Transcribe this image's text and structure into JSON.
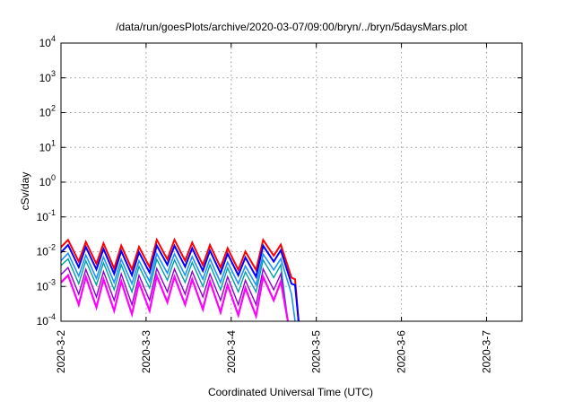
{
  "chart_data": {
    "type": "line",
    "title": "/data/run/goesPlots/archive/2020-03-07/09:00/bryn/../bryn/5daysMars.plot",
    "xlabel": "Coordinated Universal Time (UTC)",
    "ylabel": "cSv/day",
    "yscale": "log",
    "xlim": [
      "2020-03-02",
      "2020-03-07 10:00"
    ],
    "ylim": [
      0.0001,
      10000
    ],
    "grid": true,
    "x_ticks": [
      {
        "value": "2020-03-02",
        "label": "2020-3-2"
      },
      {
        "value": "2020-03-03",
        "label": "2020-3-3"
      },
      {
        "value": "2020-03-04",
        "label": "2020-3-4"
      },
      {
        "value": "2020-03-05",
        "label": "2020-3-5"
      },
      {
        "value": "2020-03-06",
        "label": "2020-3-6"
      },
      {
        "value": "2020-03-07",
        "label": "2020-3-7"
      }
    ],
    "y_ticks": [
      {
        "value": 0.0001,
        "base": "10",
        "exp": "-4"
      },
      {
        "value": 0.001,
        "base": "10",
        "exp": "-3"
      },
      {
        "value": 0.01,
        "base": "10",
        "exp": "-2"
      },
      {
        "value": 0.1,
        "base": "10",
        "exp": "-1"
      },
      {
        "value": 1,
        "base": "10",
        "exp": "0"
      },
      {
        "value": 10,
        "base": "10",
        "exp": "1"
      },
      {
        "value": 100,
        "base": "10",
        "exp": "2"
      },
      {
        "value": 1000,
        "base": "10",
        "exp": "3"
      },
      {
        "value": 10000,
        "base": "10",
        "exp": "4"
      }
    ],
    "series": [
      {
        "color": "#ff0000",
        "width": 2,
        "x": [
          "2020-03-02 00:00",
          "2020-03-02 02:00",
          "2020-03-02 05:00",
          "2020-03-02 07:00",
          "2020-03-02 10:00",
          "2020-03-02 12:00",
          "2020-03-02 15:00",
          "2020-03-02 17:00",
          "2020-03-02 20:00",
          "2020-03-02 22:00",
          "2020-03-03 01:00",
          "2020-03-03 03:00",
          "2020-03-03 06:00",
          "2020-03-03 08:00",
          "2020-03-03 11:00",
          "2020-03-03 13:00",
          "2020-03-03 16:00",
          "2020-03-03 18:00",
          "2020-03-03 21:00",
          "2020-03-03 23:00",
          "2020-03-04 02:00",
          "2020-03-04 04:00",
          "2020-03-04 07:00",
          "2020-03-04 09:00",
          "2020-03-04 12:00",
          "2020-03-04 14:00",
          "2020-03-04 17:00",
          "2020-03-04 18:00",
          "2020-03-04 19:00"
        ],
        "y": [
          0.0135,
          0.0219,
          0.0052,
          0.0191,
          0.0045,
          0.0175,
          0.0033,
          0.015,
          0.0031,
          0.0138,
          0.0036,
          0.022,
          0.006,
          0.0221,
          0.0055,
          0.0183,
          0.0041,
          0.0156,
          0.0035,
          0.0126,
          0.003,
          0.0101,
          0.003,
          0.0219,
          0.0077,
          0.016,
          0.0018,
          0.0016,
          0.0001
        ]
      },
      {
        "color": "#0000ff",
        "width": 2,
        "x": [
          "2020-03-02 00:00",
          "2020-03-02 02:00",
          "2020-03-02 05:00",
          "2020-03-02 07:00",
          "2020-03-02 10:00",
          "2020-03-02 12:00",
          "2020-03-02 15:00",
          "2020-03-02 17:00",
          "2020-03-02 20:00",
          "2020-03-02 22:00",
          "2020-03-03 01:00",
          "2020-03-03 03:00",
          "2020-03-03 06:00",
          "2020-03-03 08:00",
          "2020-03-03 11:00",
          "2020-03-03 13:00",
          "2020-03-03 16:00",
          "2020-03-03 18:00",
          "2020-03-03 21:00",
          "2020-03-03 23:00",
          "2020-03-04 02:00",
          "2020-03-04 04:00",
          "2020-03-04 07:00",
          "2020-03-04 09:00",
          "2020-03-04 12:00",
          "2020-03-04 14:00",
          "2020-03-04 17:00",
          "2020-03-04 18:00",
          "2020-03-04 19:00"
        ],
        "y": [
          0.0095,
          0.0156,
          0.0036,
          0.0137,
          0.0031,
          0.012,
          0.0023,
          0.0105,
          0.0021,
          0.0096,
          0.0025,
          0.015,
          0.0042,
          0.0148,
          0.0037,
          0.0126,
          0.0028,
          0.0108,
          0.0024,
          0.0088,
          0.0021,
          0.0068,
          0.0019,
          0.0148,
          0.0052,
          0.011,
          0.0012,
          0.0011,
          0.0001
        ]
      },
      {
        "color": "#1e90ff",
        "width": 1.6,
        "x": [
          "2020-03-02 00:00",
          "2020-03-02 02:00",
          "2020-03-02 05:00",
          "2020-03-02 07:00",
          "2020-03-02 10:00",
          "2020-03-02 12:00",
          "2020-03-02 15:00",
          "2020-03-02 17:00",
          "2020-03-02 20:00",
          "2020-03-02 22:00",
          "2020-03-03 01:00",
          "2020-03-03 03:00",
          "2020-03-03 06:00",
          "2020-03-03 08:00",
          "2020-03-03 11:00",
          "2020-03-03 13:00",
          "2020-03-03 16:00",
          "2020-03-03 18:00",
          "2020-03-03 21:00",
          "2020-03-03 23:00",
          "2020-03-04 02:00",
          "2020-03-04 04:00",
          "2020-03-04 07:00",
          "2020-03-04 09:00",
          "2020-03-04 12:00",
          "2020-03-04 14:00",
          "2020-03-04 17:00",
          "2020-03-04 18:00"
        ],
        "y": [
          0.0055,
          0.009,
          0.002,
          0.008,
          0.0017,
          0.007,
          0.0013,
          0.006,
          0.0012,
          0.0055,
          0.0014,
          0.0088,
          0.0024,
          0.0086,
          0.0021,
          0.0072,
          0.0016,
          0.0062,
          0.0013,
          0.005,
          0.0012,
          0.0039,
          0.0011,
          0.0085,
          0.003,
          0.0063,
          0.0006,
          0.0001
        ]
      },
      {
        "color": "#00a0a0",
        "width": 1.4,
        "x": [
          "2020-03-02 00:00",
          "2020-03-02 02:00",
          "2020-03-02 05:00",
          "2020-03-02 07:00",
          "2020-03-02 10:00",
          "2020-03-02 12:00",
          "2020-03-02 15:00",
          "2020-03-02 17:00",
          "2020-03-02 20:00",
          "2020-03-02 22:00",
          "2020-03-03 01:00",
          "2020-03-03 03:00",
          "2020-03-03 06:00",
          "2020-03-03 08:00",
          "2020-03-03 11:00",
          "2020-03-03 13:00",
          "2020-03-03 16:00",
          "2020-03-03 18:00",
          "2020-03-03 21:00",
          "2020-03-03 23:00",
          "2020-03-04 02:00",
          "2020-03-04 04:00",
          "2020-03-04 07:00",
          "2020-03-04 09:00",
          "2020-03-04 12:00",
          "2020-03-04 14:00",
          "2020-03-04 16:00"
        ],
        "y": [
          0.004,
          0.0062,
          0.0012,
          0.0055,
          0.0011,
          0.0048,
          0.0008,
          0.0042,
          0.0007,
          0.0038,
          0.0009,
          0.006,
          0.0015,
          0.0058,
          0.0013,
          0.0049,
          0.001,
          0.0042,
          0.0008,
          0.0034,
          0.0007,
          0.0026,
          0.0007,
          0.0058,
          0.0018,
          0.0042,
          0.0001
        ]
      },
      {
        "color": "#9400d3",
        "width": 1.4,
        "x": [
          "2020-03-02 00:00",
          "2020-03-02 02:00",
          "2020-03-02 05:00",
          "2020-03-02 07:00",
          "2020-03-02 10:00",
          "2020-03-02 12:00",
          "2020-03-02 15:00",
          "2020-03-02 17:00",
          "2020-03-02 20:00",
          "2020-03-02 22:00",
          "2020-03-03 01:00",
          "2020-03-03 03:00",
          "2020-03-03 06:00",
          "2020-03-03 08:00",
          "2020-03-03 11:00",
          "2020-03-03 13:00",
          "2020-03-03 16:00",
          "2020-03-03 18:00",
          "2020-03-03 21:00",
          "2020-03-03 23:00",
          "2020-03-04 02:00",
          "2020-03-04 04:00",
          "2020-03-04 07:00",
          "2020-03-04 09:00",
          "2020-03-04 12:00",
          "2020-03-04 14:00",
          "2020-03-04 16:00"
        ],
        "y": [
          0.0022,
          0.0035,
          0.0006,
          0.0031,
          0.0005,
          0.0027,
          0.0004,
          0.0023,
          0.0003,
          0.0021,
          0.0004,
          0.0033,
          0.0007,
          0.0032,
          0.0006,
          0.0027,
          0.0005,
          0.0023,
          0.0004,
          0.0019,
          0.0003,
          0.0015,
          0.0003,
          0.0032,
          0.0008,
          0.0023,
          0.0001
        ]
      },
      {
        "color": "#ff00ff",
        "width": 2.2,
        "x": [
          "2020-03-02 00:00",
          "2020-03-02 02:00",
          "2020-03-02 05:00",
          "2020-03-02 07:00",
          "2020-03-02 10:00",
          "2020-03-02 12:00",
          "2020-03-02 15:00",
          "2020-03-02 17:00",
          "2020-03-02 20:00",
          "2020-03-02 22:00",
          "2020-03-03 01:00",
          "2020-03-03 03:00",
          "2020-03-03 06:00",
          "2020-03-03 08:00",
          "2020-03-03 11:00",
          "2020-03-03 13:00",
          "2020-03-03 16:00",
          "2020-03-03 18:00",
          "2020-03-03 21:00",
          "2020-03-03 23:00",
          "2020-03-04 02:00",
          "2020-03-04 04:00",
          "2020-03-04 07:00",
          "2020-03-04 09:00",
          "2020-03-04 12:00",
          "2020-03-04 14:00",
          "2020-03-04 16:00"
        ],
        "y": [
          0.0013,
          0.0021,
          0.0003,
          0.0019,
          0.00025,
          0.0016,
          0.0002,
          0.0014,
          0.00016,
          0.0013,
          0.0002,
          0.002,
          0.00035,
          0.0019,
          0.0003,
          0.0016,
          0.00022,
          0.0014,
          0.00018,
          0.0011,
          0.00015,
          0.0009,
          0.00014,
          0.0019,
          0.0004,
          0.0014,
          0.0001
        ]
      }
    ]
  }
}
